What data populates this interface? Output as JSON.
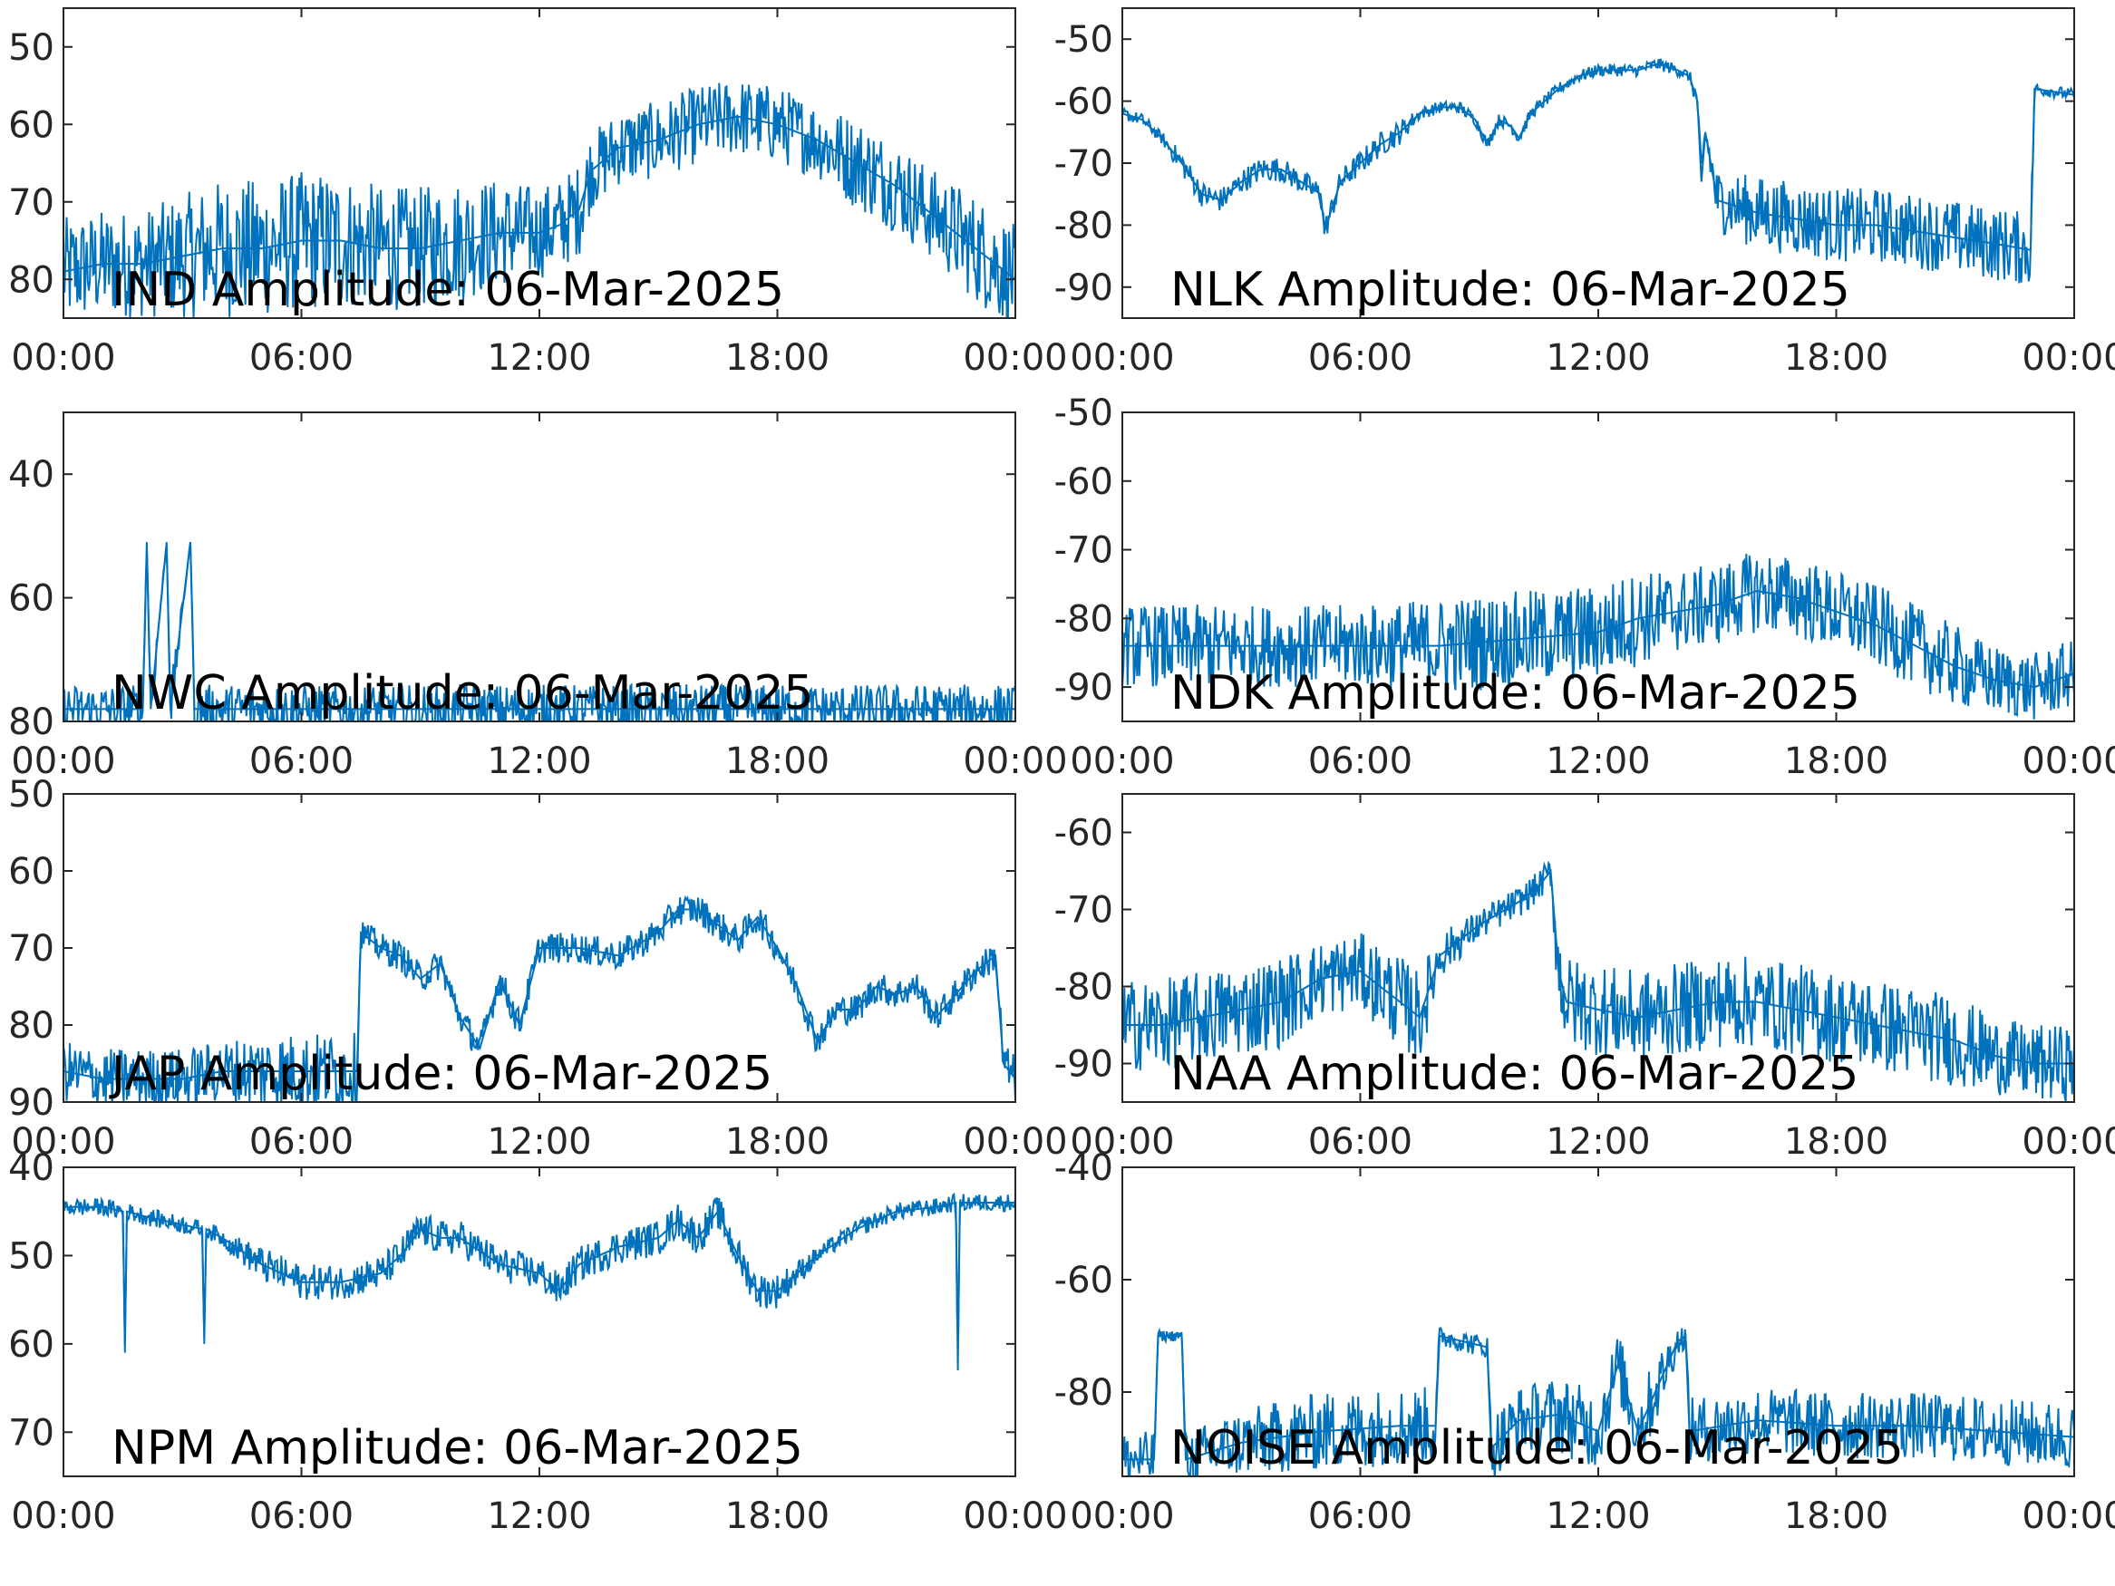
{
  "figure": {
    "line_color": "#0072BD",
    "axes_color": "#262626",
    "background": "#ffffff"
  },
  "chart_data": [
    {
      "type": "line",
      "title": "IND Amplitude: 06-Mar-2025",
      "x_ticks": [
        "00:00",
        "06:00",
        "12:00",
        "18:00",
        "00:00"
      ],
      "x_hours": [
        0,
        6,
        12,
        18,
        24
      ],
      "ylim": [
        -85,
        -45
      ],
      "y_ticks": [
        -80,
        -70,
        -60,
        -50
      ],
      "y_tick_labels": [
        "80",
        "70",
        "60",
        "50"
      ],
      "series": [
        {
          "x": [
            0,
            1,
            2,
            3,
            4,
            5,
            6,
            7,
            8,
            9,
            10,
            11,
            12,
            12.5,
            13,
            13.3,
            14,
            15,
            16,
            17,
            18,
            19,
            20,
            21,
            22,
            23,
            24
          ],
          "y": [
            -79,
            -78,
            -78,
            -77,
            -76,
            -76,
            -75,
            -75,
            -76,
            -76,
            -75,
            -74,
            -74,
            -73,
            -71,
            -66,
            -63,
            -62,
            -60,
            -59,
            -60,
            -62,
            -65,
            -68,
            -72,
            -76,
            -80
          ],
          "spread": [
            7,
            7,
            7,
            8,
            9,
            9,
            9,
            9,
            8,
            8,
            8,
            7,
            6,
            6,
            6,
            5,
            5,
            5,
            5,
            5,
            5,
            5,
            6,
            6,
            6,
            7,
            7
          ]
        }
      ]
    },
    {
      "type": "line",
      "title": "NLK Amplitude: 06-Mar-2025",
      "x_ticks": [
        "00:00",
        "06:00",
        "12:00",
        "18:00",
        "00:00"
      ],
      "x_hours": [
        0,
        6,
        12,
        18,
        24
      ],
      "ylim": [
        -95,
        -45
      ],
      "y_ticks": [
        -90,
        -80,
        -70,
        -60,
        -50
      ],
      "y_tick_labels": [
        "-90",
        "-80",
        "-70",
        "-60",
        "-50"
      ],
      "series": [
        {
          "x": [
            0,
            0.5,
            1,
            1.5,
            2,
            2.5,
            3,
            3.5,
            4,
            4.5,
            5,
            5.1,
            5.5,
            6,
            6.5,
            7,
            7.5,
            8,
            8.5,
            8.9,
            9.2,
            9.5,
            9.8,
            10,
            10.3,
            11,
            11.5,
            12,
            13,
            13.5,
            14,
            14.3,
            14.5,
            14.6,
            14.7,
            15,
            16,
            17,
            18,
            19,
            20,
            21,
            22,
            22.9,
            23,
            24
          ],
          "y": [
            -62,
            -63,
            -66,
            -70,
            -75,
            -76,
            -73,
            -71,
            -71,
            -73,
            -75,
            -81,
            -73,
            -70,
            -67,
            -65,
            -62,
            -61,
            -61,
            -63,
            -67,
            -63,
            -64,
            -66,
            -62,
            -58,
            -56,
            -55,
            -55,
            -54,
            -55,
            -56,
            -60,
            -73,
            -65,
            -76,
            -78,
            -79,
            -80,
            -80,
            -81,
            -82,
            -83,
            -84,
            -58,
            -59
          ],
          "spread": [
            1,
            1,
            1,
            2,
            2,
            2,
            2,
            2,
            2,
            2,
            2,
            2,
            2,
            2,
            2,
            2,
            1,
            1,
            1,
            1,
            1,
            1,
            1,
            1,
            1,
            1,
            1,
            1,
            1,
            1,
            1,
            1,
            2,
            3,
            3,
            5,
            6,
            6,
            6,
            6,
            6,
            6,
            6,
            6,
            1,
            1
          ]
        }
      ]
    },
    {
      "type": "line",
      "title": "NWC Amplitude: 06-Mar-2025",
      "x_ticks": [
        "00:00",
        "06:00",
        "12:00",
        "18:00",
        "00:00"
      ],
      "x_hours": [
        0,
        6,
        12,
        18,
        24
      ],
      "ylim": [
        -80,
        -30
      ],
      "y_ticks": [
        -80,
        -60,
        -40
      ],
      "y_tick_labels": [
        "80",
        "60",
        "40"
      ],
      "series": [
        {
          "x": [
            0,
            2,
            2.1,
            2.2,
            2.6,
            2.7,
            3.2,
            3.3,
            4,
            6,
            8,
            10,
            12,
            14,
            16,
            18,
            20,
            22,
            24
          ],
          "y": [
            -78,
            -78,
            -51,
            -78,
            -51,
            -78,
            -51,
            -78,
            -78,
            -78,
            -78,
            -78,
            -78,
            -78,
            -78,
            -78,
            -78,
            -78,
            -78
          ],
          "spread": [
            4,
            4,
            0,
            4,
            0,
            4,
            0,
            4,
            4,
            4,
            4,
            4,
            4,
            4,
            4,
            4,
            4,
            4,
            4
          ]
        }
      ]
    },
    {
      "type": "line",
      "title": "NDK Amplitude: 06-Mar-2025",
      "x_ticks": [
        "00:00",
        "06:00",
        "12:00",
        "18:00",
        "00:00"
      ],
      "x_hours": [
        0,
        6,
        12,
        18,
        24
      ],
      "ylim": [
        -95,
        -50
      ],
      "y_ticks": [
        -90,
        -80,
        -70,
        -60,
        -50
      ],
      "y_tick_labels": [
        "-90",
        "-80",
        "-70",
        "-60",
        "-50"
      ],
      "series": [
        {
          "x": [
            0,
            2,
            4,
            6,
            8,
            10,
            12,
            13,
            14,
            15,
            16,
            17,
            18,
            19,
            20,
            21,
            22,
            23,
            24
          ],
          "y": [
            -84,
            -84,
            -84,
            -84,
            -84,
            -83,
            -82,
            -80,
            -79,
            -78,
            -76,
            -77,
            -79,
            -81,
            -84,
            -87,
            -89,
            -90,
            -88
          ],
          "spread": [
            6,
            6,
            6,
            6,
            7,
            7,
            7,
            7,
            6,
            6,
            6,
            6,
            6,
            6,
            6,
            6,
            5,
            5,
            5
          ]
        }
      ]
    },
    {
      "type": "line",
      "title": "JAP Amplitude: 06-Mar-2025",
      "x_ticks": [
        "00:00",
        "06:00",
        "12:00",
        "18:00",
        "00:00"
      ],
      "x_hours": [
        0,
        6,
        12,
        18,
        24
      ],
      "ylim": [
        -90,
        -50
      ],
      "y_ticks": [
        -90,
        -80,
        -70,
        -60,
        -50
      ],
      "y_tick_labels": [
        "90",
        "80",
        "70",
        "60",
        "50"
      ],
      "series": [
        {
          "x": [
            0,
            1,
            2,
            3,
            4,
            5,
            6,
            7,
            7.4,
            7.5,
            8,
            8.5,
            9,
            9.5,
            10,
            10.5,
            11,
            11.5,
            12,
            13,
            14,
            15,
            15.5,
            16,
            17,
            17.5,
            18,
            18.5,
            19,
            19.5,
            20,
            20.5,
            21,
            21.5,
            22,
            22.5,
            23,
            23.5,
            23.7,
            24
          ],
          "y": [
            -86,
            -87,
            -87,
            -87,
            -86,
            -86,
            -86,
            -86,
            -86,
            -68,
            -70,
            -71,
            -74,
            -72,
            -79,
            -83,
            -74,
            -80,
            -70,
            -70,
            -71,
            -68,
            -65,
            -65,
            -69,
            -66,
            -70,
            -75,
            -82,
            -78,
            -78,
            -75,
            -76,
            -75,
            -79,
            -76,
            -73,
            -71,
            -85,
            -87
          ],
          "spread": [
            4,
            4,
            4,
            4,
            4,
            5,
            5,
            5,
            5,
            2,
            2,
            2,
            2,
            2,
            2,
            2,
            2,
            2,
            2,
            2,
            2,
            2,
            2,
            2,
            2,
            2,
            2,
            2,
            2,
            2,
            2,
            2,
            2,
            2,
            2,
            2,
            2,
            2,
            3,
            3
          ]
        }
      ]
    },
    {
      "type": "line",
      "title": "NAA Amplitude: 06-Mar-2025",
      "x_ticks": [
        "00:00",
        "06:00",
        "12:00",
        "18:00",
        "00:00"
      ],
      "x_hours": [
        0,
        6,
        12,
        18,
        24
      ],
      "ylim": [
        -95,
        -55
      ],
      "y_ticks": [
        -90,
        -80,
        -70,
        -60
      ],
      "y_tick_labels": [
        "-90",
        "-80",
        "-70",
        "-60"
      ],
      "series": [
        {
          "x": [
            0,
            1,
            2,
            3,
            4,
            5,
            6,
            7,
            7.5,
            8,
            9,
            10,
            10.5,
            10.8,
            11,
            11.2,
            12,
            13,
            14,
            15,
            16,
            17,
            18,
            19,
            20,
            21,
            22,
            23,
            24
          ],
          "y": [
            -85,
            -85,
            -84,
            -83,
            -82,
            -79,
            -78,
            -82,
            -84,
            -76,
            -72,
            -69,
            -67,
            -65,
            -78,
            -82,
            -83,
            -84,
            -83,
            -82,
            -82,
            -83,
            -84,
            -85,
            -86,
            -87,
            -89,
            -90,
            -90
          ],
          "spread": [
            6,
            6,
            6,
            6,
            6,
            5,
            5,
            6,
            6,
            3,
            2,
            2,
            2,
            2,
            6,
            6,
            6,
            6,
            6,
            6,
            6,
            6,
            6,
            6,
            6,
            6,
            5,
            5,
            5
          ]
        }
      ]
    },
    {
      "type": "line",
      "title": "NPM Amplitude: 06-Mar-2025",
      "x_ticks": [
        "00:00",
        "06:00",
        "12:00",
        "18:00",
        "00:00"
      ],
      "x_hours": [
        0,
        6,
        12,
        18,
        24
      ],
      "ylim": [
        -75,
        -40
      ],
      "y_ticks": [
        -70,
        -60,
        -50,
        -40
      ],
      "y_tick_labels": [
        "70",
        "60",
        "50",
        "40"
      ],
      "series": [
        {
          "x": [
            0,
            1,
            1.5,
            1.55,
            1.6,
            2,
            3,
            3.5,
            3.55,
            3.6,
            4,
            5,
            6,
            7,
            8,
            8.5,
            9,
            9.5,
            10,
            11,
            12,
            12.5,
            13,
            14,
            15,
            15.5,
            16,
            16.5,
            17,
            17.5,
            18,
            19,
            20,
            21,
            22,
            22.5,
            22.55,
            22.6,
            23,
            24
          ],
          "y": [
            -44.5,
            -44.5,
            -45,
            -61,
            -45,
            -45.5,
            -46.5,
            -47,
            -60,
            -47,
            -48,
            -51,
            -53,
            -53,
            -52,
            -50,
            -47,
            -48,
            -48,
            -51,
            -52,
            -54,
            -51,
            -49,
            -48,
            -46,
            -48,
            -45,
            -50,
            -54,
            -54,
            -50,
            -47,
            -45,
            -44.5,
            -44,
            -63,
            -44,
            -44,
            -44
          ],
          "spread": [
            1,
            1,
            1,
            0,
            1,
            1,
            1,
            1,
            0,
            1,
            1,
            2,
            2,
            2,
            2,
            2,
            2,
            2,
            2,
            2,
            2,
            2,
            2,
            2,
            2,
            2,
            2,
            2,
            2,
            2,
            2,
            1,
            1,
            1,
            1,
            1,
            0,
            1,
            1,
            1
          ]
        }
      ]
    },
    {
      "type": "line",
      "title": "NOISE Amplitude: 06-Mar-2025",
      "x_ticks": [
        "00:00",
        "06:00",
        "12:00",
        "18:00",
        "00:00"
      ],
      "x_hours": [
        0,
        6,
        12,
        18,
        24
      ],
      "ylim": [
        -95,
        -40
      ],
      "y_ticks": [
        -80,
        -60,
        -40
      ],
      "y_tick_labels": [
        "-80",
        "-60",
        "-40"
      ],
      "series": [
        {
          "x": [
            0,
            0.8,
            0.9,
            1.5,
            1.6,
            3,
            5,
            7,
            7.9,
            8,
            9.2,
            9.3,
            10,
            11,
            12,
            12.5,
            13,
            13.5,
            14,
            14.2,
            14.3,
            16,
            18,
            20,
            22,
            24
          ],
          "y": [
            -92,
            -92,
            -70,
            -70,
            -92,
            -89,
            -87,
            -86,
            -86,
            -70,
            -72,
            -90,
            -85,
            -84,
            -87,
            -75,
            -87,
            -79,
            -71,
            -70,
            -87,
            -85,
            -86,
            -86,
            -87,
            -88
          ],
          "spread": [
            5,
            5,
            1,
            1,
            5,
            6,
            7,
            7,
            7,
            2,
            2,
            6,
            6,
            7,
            7,
            6,
            7,
            6,
            3,
            2,
            6,
            6,
            6,
            6,
            6,
            6
          ]
        }
      ]
    }
  ]
}
